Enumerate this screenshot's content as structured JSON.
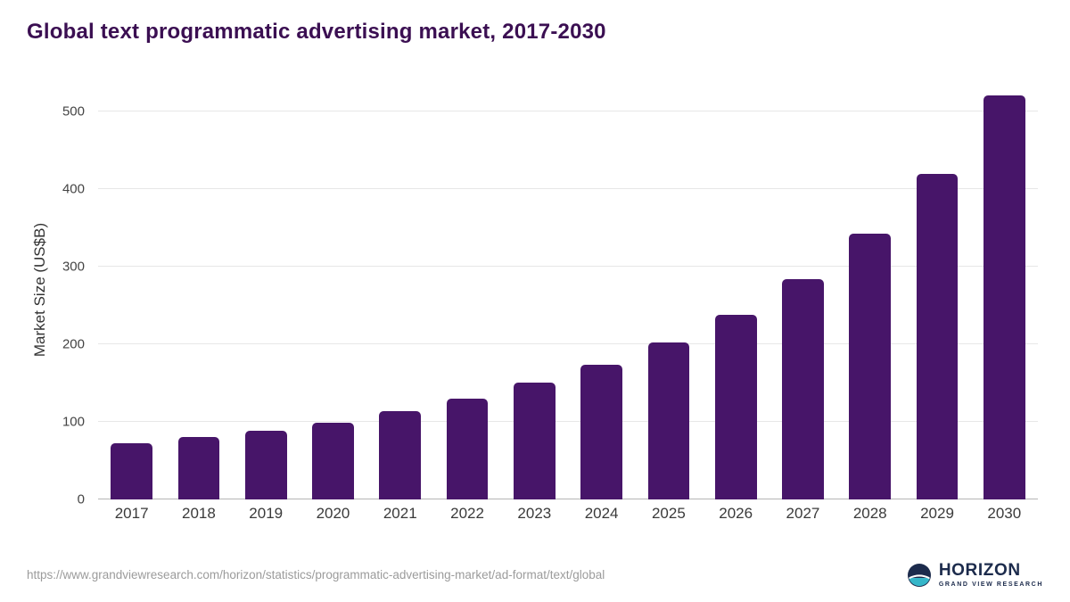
{
  "title": "Global text programmatic advertising market, 2017-2030",
  "footer": {
    "source_url": "https://www.grandviewresearch.com/horizon/statistics/programmatic-advertising-market/ad-format/text/global",
    "logo": {
      "name": "HORIZON",
      "subtitle": "GRAND VIEW RESEARCH"
    }
  },
  "colors": {
    "bar": "#471569",
    "title": "#3b0f52",
    "gridline": "#e7e7e7",
    "baseline": "#b5b5b5",
    "logo_navy": "#1c2b4c",
    "logo_teal": "#35b6c9"
  },
  "chart_data": {
    "type": "bar",
    "title": "Global text programmatic advertising market, 2017-2030",
    "categories": [
      "2017",
      "2018",
      "2019",
      "2020",
      "2021",
      "2022",
      "2023",
      "2024",
      "2025",
      "2026",
      "2027",
      "2028",
      "2029",
      "2030"
    ],
    "values": [
      72,
      80,
      89,
      99,
      114,
      130,
      150,
      173,
      202,
      238,
      284,
      342,
      419,
      520
    ],
    "xlabel": "",
    "ylabel": "Market Size (US$B)",
    "ylim": [
      0,
      540
    ],
    "yticks": [
      0,
      100,
      200,
      300,
      400,
      500
    ],
    "grid": true,
    "legend": "none",
    "bar_color": "#471569"
  }
}
